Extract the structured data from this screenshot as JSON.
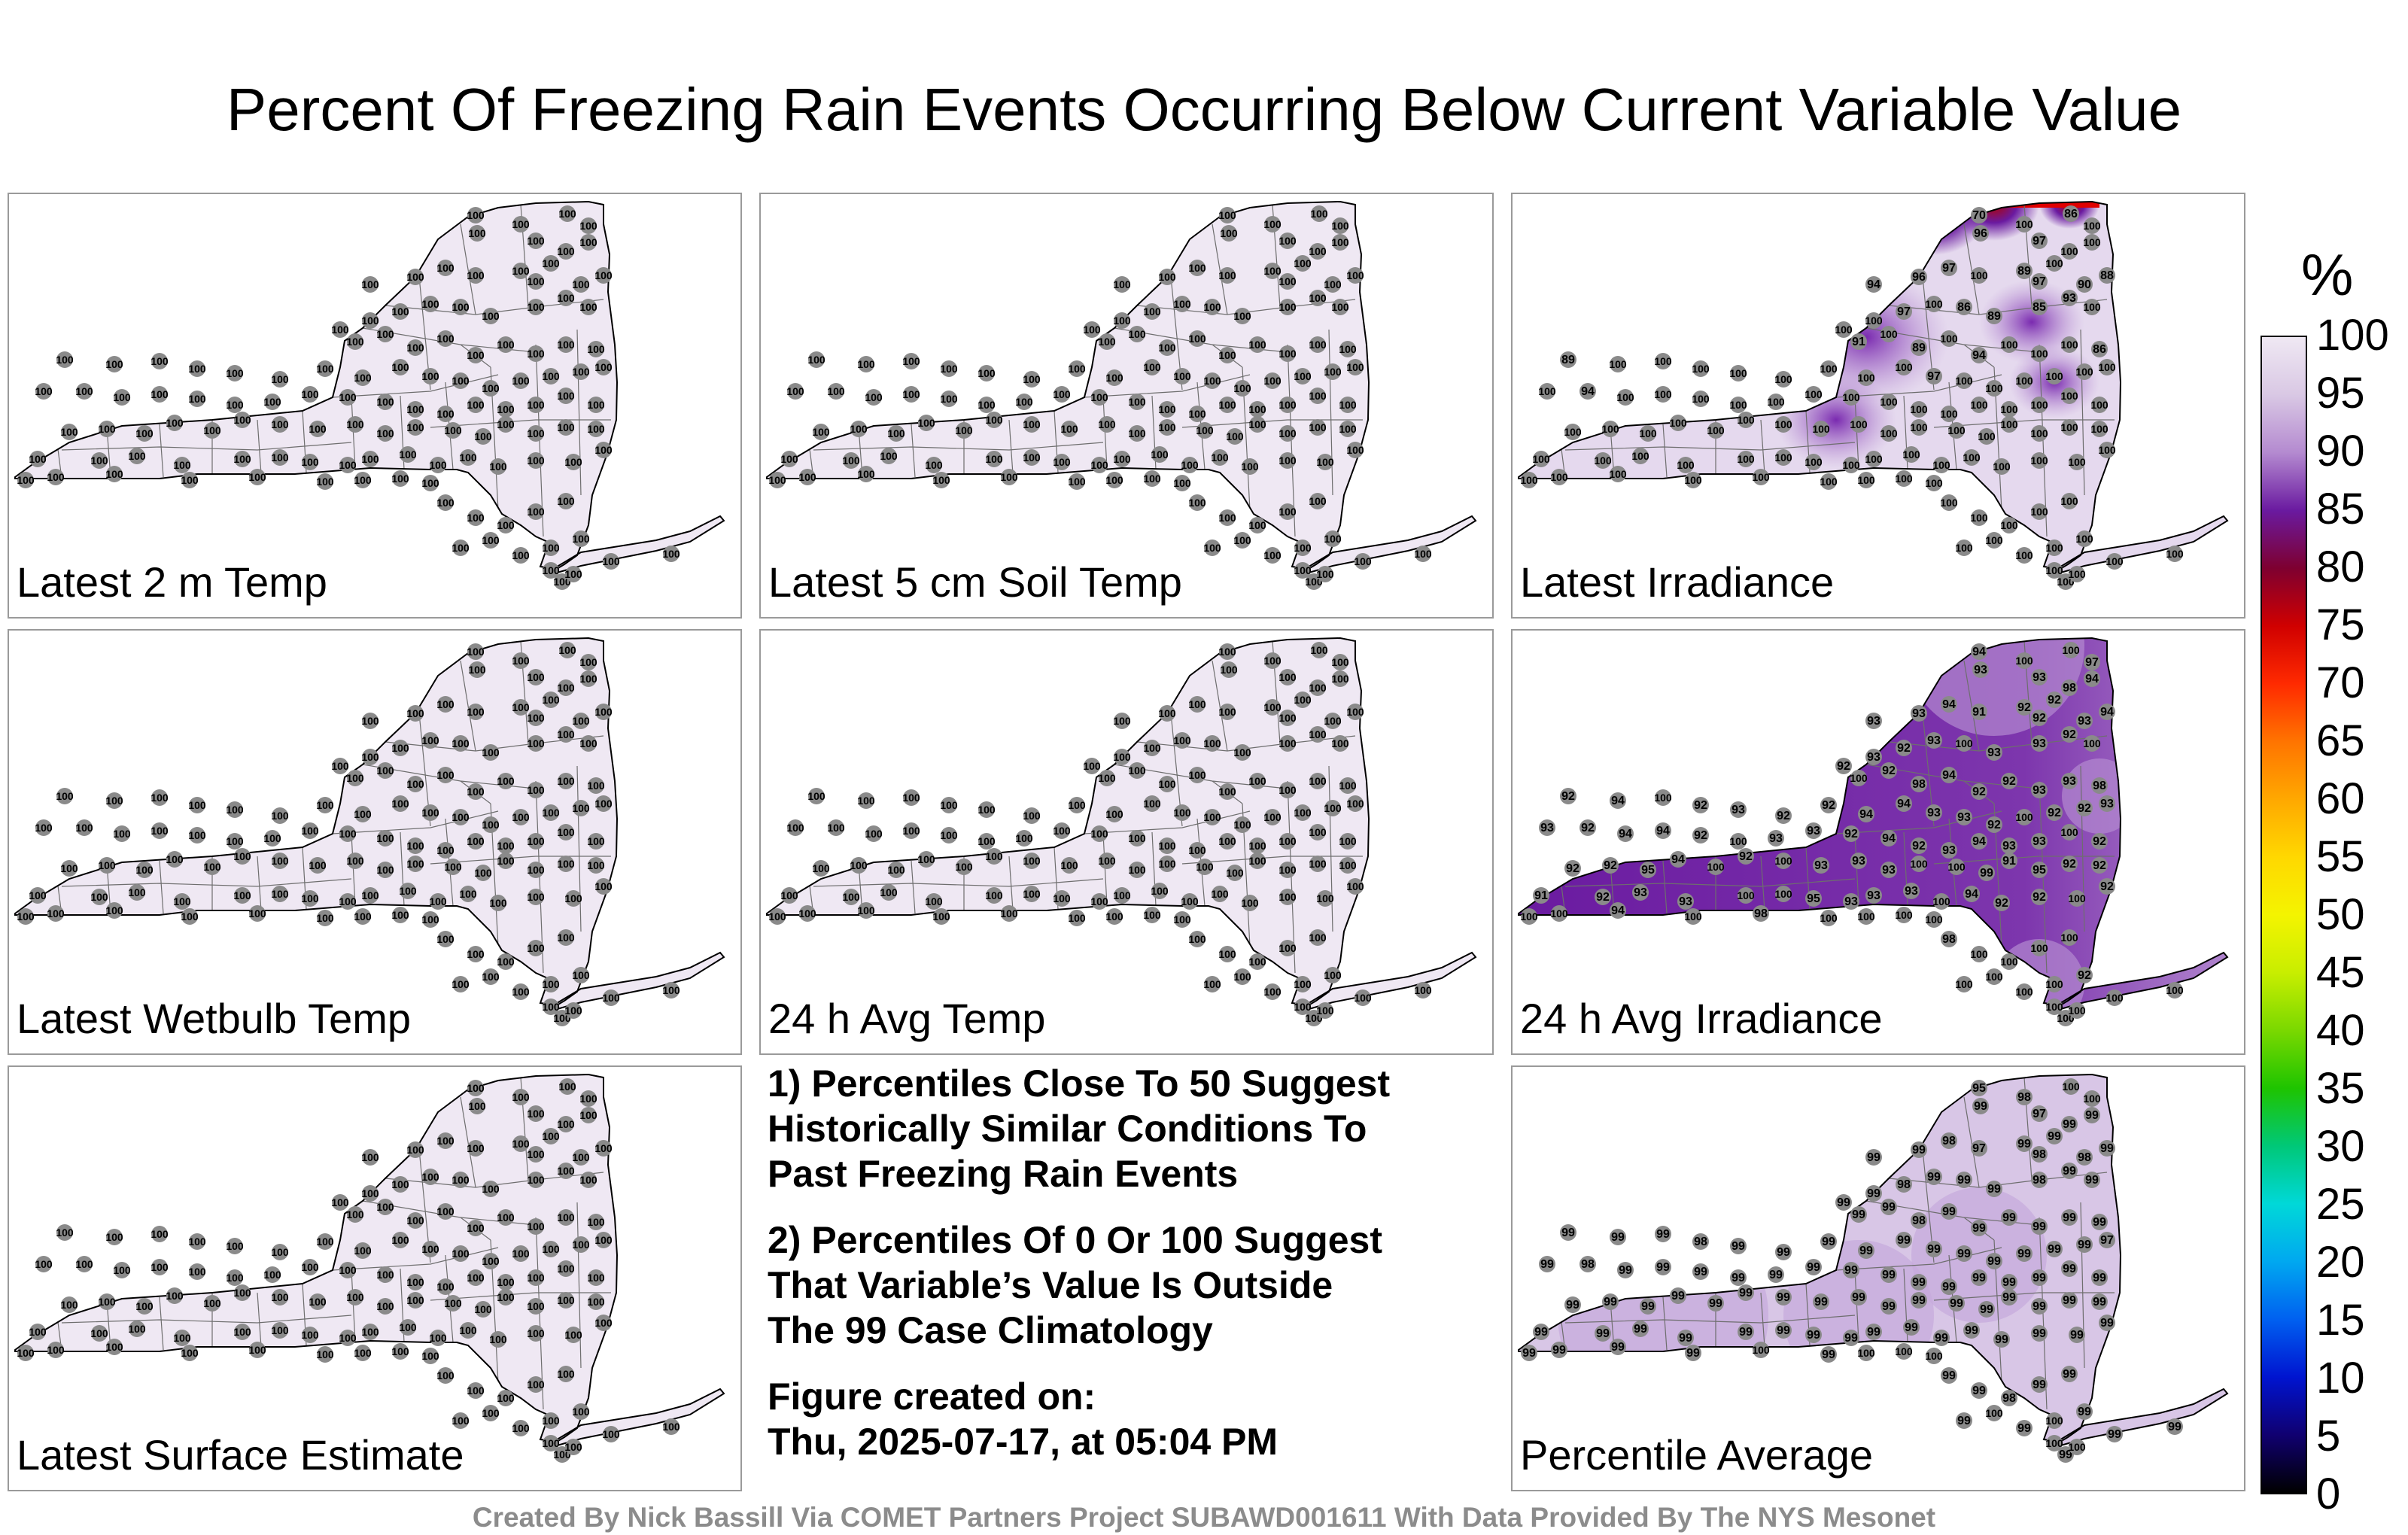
{
  "title": "Percent Of Freezing Rain Events Occurring Below Current Variable Value",
  "panels": [
    {
      "label": "Latest 2 m Temp",
      "shading": "none",
      "values": [
        100,
        100,
        100,
        100,
        100,
        100,
        100,
        100,
        100,
        100,
        100,
        100,
        100,
        100,
        100,
        100,
        100,
        100,
        100,
        100,
        100,
        100,
        100,
        100,
        100,
        100,
        100,
        100,
        100,
        100,
        100,
        100,
        100,
        100,
        100,
        100,
        100,
        100,
        100,
        100,
        100,
        100,
        100,
        100,
        100,
        100,
        100,
        100,
        100,
        100,
        100,
        100,
        100,
        100,
        100,
        100,
        100,
        100,
        100,
        100,
        100,
        100,
        100,
        100,
        100,
        100,
        100,
        100,
        100,
        100,
        100,
        100,
        100,
        100,
        100,
        100,
        100,
        100,
        100,
        100,
        100,
        100,
        100,
        100,
        100,
        100,
        100,
        100,
        100,
        100,
        100,
        100,
        100,
        100,
        100,
        100,
        100,
        100,
        100,
        100,
        100,
        100,
        100,
        100,
        100,
        100,
        100,
        100,
        100,
        100,
        100,
        100,
        100,
        100,
        100,
        100,
        100,
        100,
        100,
        100,
        100,
        100,
        100,
        100,
        100
      ]
    },
    {
      "label": "Latest 5 cm Soil Temp",
      "shading": "none",
      "values": [
        100,
        100,
        100,
        100,
        100,
        100,
        100,
        100,
        100,
        100,
        100,
        100,
        100,
        100,
        100,
        100,
        100,
        100,
        100,
        100,
        100,
        100,
        100,
        100,
        100,
        100,
        100,
        100,
        100,
        100,
        100,
        100,
        100,
        100,
        100,
        100,
        100,
        100,
        100,
        100,
        100,
        100,
        100,
        100,
        100,
        100,
        100,
        100,
        100,
        100,
        100,
        100,
        100,
        100,
        100,
        100,
        100,
        100,
        100,
        100,
        100,
        100,
        100,
        100,
        100,
        100,
        100,
        100,
        100,
        100,
        100,
        100,
        100,
        100,
        100,
        100,
        100,
        100,
        100,
        100,
        100,
        100,
        100,
        100,
        100,
        100,
        100,
        100,
        100,
        100,
        100,
        100,
        100,
        100,
        100,
        100,
        100,
        100,
        100,
        100,
        100,
        100,
        100,
        100,
        100,
        100,
        100,
        100,
        100,
        100,
        100,
        100,
        100,
        100,
        100,
        100,
        100,
        100,
        100,
        100,
        100,
        100,
        100,
        100,
        100
      ]
    },
    {
      "label": "Latest Irradiance",
      "shading": "irradiance",
      "values": [
        70,
        100,
        86,
        100,
        100,
        96,
        97,
        100,
        94,
        96,
        97,
        100,
        89,
        97,
        100,
        90,
        88,
        100,
        100,
        97,
        100,
        86,
        89,
        85,
        93,
        100,
        91,
        100,
        89,
        100,
        94,
        100,
        100,
        100,
        86,
        89,
        100,
        100,
        100,
        100,
        100,
        100,
        100,
        100,
        97,
        100,
        100,
        100,
        100,
        100,
        100,
        100,
        94,
        100,
        100,
        100,
        100,
        100,
        100,
        100,
        100,
        100,
        100,
        100,
        100,
        100,
        100,
        100,
        100,
        100,
        100,
        100,
        100,
        100,
        100,
        100,
        100,
        100,
        100,
        100,
        100,
        100,
        100,
        100,
        100,
        100,
        100,
        100,
        100,
        100,
        100,
        100,
        100,
        100,
        100,
        100,
        100,
        100,
        100,
        100,
        100,
        100,
        100,
        100,
        100,
        100,
        100,
        100,
        100,
        100,
        100,
        100,
        100,
        100,
        100,
        100,
        100,
        100,
        100,
        100,
        100,
        100,
        100,
        100,
        100
      ]
    },
    {
      "label": "Latest Wetbulb Temp",
      "shading": "none",
      "values": [
        100,
        100,
        100,
        100,
        100,
        100,
        100,
        100,
        100,
        100,
        100,
        100,
        100,
        100,
        100,
        100,
        100,
        100,
        100,
        100,
        100,
        100,
        100,
        100,
        100,
        100,
        100,
        100,
        100,
        100,
        100,
        100,
        100,
        100,
        100,
        100,
        100,
        100,
        100,
        100,
        100,
        100,
        100,
        100,
        100,
        100,
        100,
        100,
        100,
        100,
        100,
        100,
        100,
        100,
        100,
        100,
        100,
        100,
        100,
        100,
        100,
        100,
        100,
        100,
        100,
        100,
        100,
        100,
        100,
        100,
        100,
        100,
        100,
        100,
        100,
        100,
        100,
        100,
        100,
        100,
        100,
        100,
        100,
        100,
        100,
        100,
        100,
        100,
        100,
        100,
        100,
        100,
        100,
        100,
        100,
        100,
        100,
        100,
        100,
        100,
        100,
        100,
        100,
        100,
        100,
        100,
        100,
        100,
        100,
        100,
        100,
        100,
        100,
        100,
        100,
        100,
        100,
        100,
        100,
        100,
        100,
        100,
        100,
        100,
        100
      ]
    },
    {
      "label": "24 h Avg Temp",
      "shading": "none",
      "values": [
        100,
        100,
        100,
        100,
        100,
        100,
        100,
        100,
        100,
        100,
        100,
        100,
        100,
        100,
        100,
        100,
        100,
        100,
        100,
        100,
        100,
        100,
        100,
        100,
        100,
        100,
        100,
        100,
        100,
        100,
        100,
        100,
        100,
        100,
        100,
        100,
        100,
        100,
        100,
        100,
        100,
        100,
        100,
        100,
        100,
        100,
        100,
        100,
        100,
        100,
        100,
        100,
        100,
        100,
        100,
        100,
        100,
        100,
        100,
        100,
        100,
        100,
        100,
        100,
        100,
        100,
        100,
        100,
        100,
        100,
        100,
        100,
        100,
        100,
        100,
        100,
        100,
        100,
        100,
        100,
        100,
        100,
        100,
        100,
        100,
        100,
        100,
        100,
        100,
        100,
        100,
        100,
        100,
        100,
        100,
        100,
        100,
        100,
        100,
        100,
        100,
        100,
        100,
        100,
        100,
        100,
        100,
        100,
        100,
        100,
        100,
        100,
        100,
        100,
        100,
        100,
        100,
        100,
        100,
        100,
        100,
        100,
        100,
        100,
        100
      ]
    },
    {
      "label": "24 h Avg Irradiance",
      "shading": "avgirr",
      "values": [
        94,
        100,
        100,
        97,
        94,
        93,
        93,
        98,
        93,
        93,
        94,
        91,
        92,
        92,
        92,
        93,
        94,
        92,
        93,
        92,
        93,
        100,
        93,
        93,
        92,
        100,
        100,
        92,
        98,
        94,
        92,
        92,
        93,
        93,
        98,
        92,
        94,
        100,
        92,
        93,
        92,
        92,
        94,
        94,
        93,
        93,
        92,
        100,
        92,
        92,
        93,
        93,
        92,
        94,
        94,
        92,
        100,
        93,
        93,
        92,
        94,
        92,
        93,
        94,
        93,
        93,
        100,
        92,
        92,
        92,
        95,
        94,
        100,
        92,
        100,
        93,
        93,
        93,
        100,
        100,
        99,
        91,
        95,
        92,
        92,
        91,
        92,
        93,
        93,
        100,
        100,
        95,
        93,
        93,
        93,
        100,
        94,
        92,
        92,
        100,
        92,
        100,
        100,
        94,
        100,
        98,
        100,
        100,
        100,
        100,
        98,
        100,
        100,
        100,
        100,
        100,
        100,
        100,
        100,
        92,
        100,
        100,
        100,
        100,
        100
      ]
    },
    {
      "label": "Latest Surface Estimate",
      "shading": "none",
      "values": [
        100,
        100,
        100,
        100,
        100,
        100,
        100,
        100,
        100,
        100,
        100,
        100,
        100,
        100,
        100,
        100,
        100,
        100,
        100,
        100,
        100,
        100,
        100,
        100,
        100,
        100,
        100,
        100,
        100,
        100,
        100,
        100,
        100,
        100,
        100,
        100,
        100,
        100,
        100,
        100,
        100,
        100,
        100,
        100,
        100,
        100,
        100,
        100,
        100,
        100,
        100,
        100,
        100,
        100,
        100,
        100,
        100,
        100,
        100,
        100,
        100,
        100,
        100,
        100,
        100,
        100,
        100,
        100,
        100,
        100,
        100,
        100,
        100,
        100,
        100,
        100,
        100,
        100,
        100,
        100,
        100,
        100,
        100,
        100,
        100,
        100,
        100,
        100,
        100,
        100,
        100,
        100,
        100,
        100,
        100,
        100,
        100,
        100,
        100,
        100,
        100,
        100,
        100,
        100,
        100,
        100,
        100,
        100,
        100,
        100,
        100,
        100,
        100,
        100,
        100,
        100,
        100,
        100,
        100,
        100,
        100,
        100,
        100,
        100,
        100
      ]
    },
    {
      "label": "Percentile Average",
      "shading": "avg",
      "values": [
        95,
        98,
        100,
        100,
        99,
        99,
        97,
        99,
        99,
        99,
        98,
        97,
        99,
        98,
        99,
        98,
        99,
        99,
        99,
        98,
        99,
        99,
        99,
        98,
        99,
        99,
        99,
        99,
        98,
        99,
        99,
        99,
        99,
        99,
        99,
        99,
        99,
        99,
        98,
        99,
        99,
        99,
        99,
        99,
        99,
        99,
        99,
        99,
        99,
        99,
        97,
        99,
        98,
        99,
        99,
        99,
        99,
        99,
        99,
        99,
        99,
        99,
        99,
        99,
        99,
        99,
        99,
        99,
        99,
        99,
        99,
        99,
        99,
        99,
        99,
        99,
        99,
        99,
        99,
        99,
        99,
        99,
        99,
        99,
        99,
        99,
        99,
        99,
        99,
        99,
        99,
        99,
        99,
        99,
        99,
        99,
        99,
        99,
        99,
        99,
        99,
        99,
        99,
        99,
        99,
        100,
        99,
        100,
        100,
        100,
        99,
        99,
        98,
        99,
        99,
        99,
        100,
        99,
        100,
        99,
        100,
        99,
        100,
        99,
        99
      ]
    }
  ],
  "notes": [
    "1) Percentiles Close To 50 Suggest\nHistorically Similar Conditions To\nPast Freezing Rain Events",
    "2) Percentiles Of 0 Or 100 Suggest\nThat Variable’s Value Is Outside\nThe 99 Case Climatology",
    "Figure created on:\nThu, 2025-07-17, at 05:04 PM"
  ],
  "footer": "Created By Nick Bassill Via COMET Partners Project SUBAWD001611 With Data Provided By The NYS Mesonet",
  "colorbar": {
    "unit": "%",
    "ticks": [
      "100",
      "95",
      "90",
      "85",
      "80",
      "75",
      "70",
      "65",
      "60",
      "55",
      "50",
      "45",
      "40",
      "35",
      "30",
      "25",
      "20",
      "15",
      "10",
      "5",
      "0"
    ],
    "colors": [
      "#efe8f3",
      "#d9c8e4",
      "#b48ad0",
      "#6a1aa0",
      "#7e0030",
      "#d00000",
      "#ff2a00",
      "#ff7400",
      "#ffa800",
      "#ffd800",
      "#f4f400",
      "#c8ee00",
      "#7ad800",
      "#1ec400",
      "#00c878",
      "#00d8d8",
      "#00a8f0",
      "#0060f0",
      "#0014d0",
      "#100070",
      "#000000"
    ]
  }
}
